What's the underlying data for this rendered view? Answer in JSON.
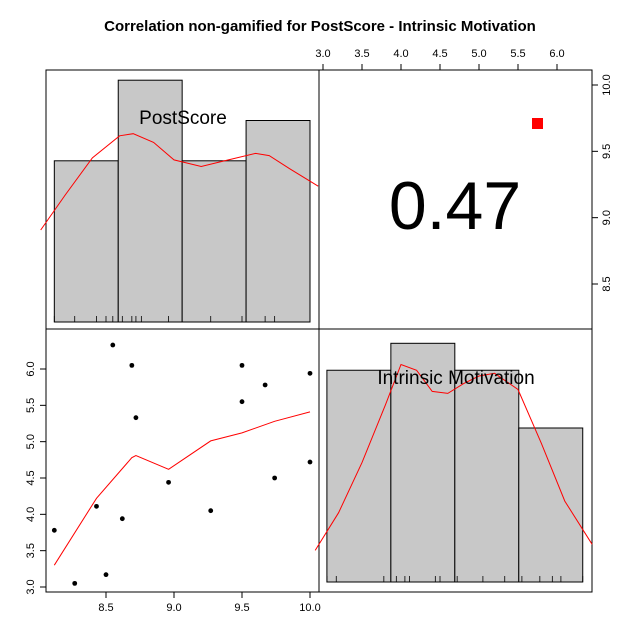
{
  "title": "Correlation non-gamified for PostScore - Intrinsic Motivation",
  "colors": {
    "bar_fill": "#c8c8c8",
    "density_line": "#ff0000",
    "smooth_line": "#ff0000",
    "point": "#000000",
    "marker": "#ff0000"
  },
  "chart_data": {
    "type": "scatter",
    "variables": [
      "PostScore",
      "Intrinsic Motivation"
    ],
    "correlation": {
      "value": 0.47,
      "label": "0.47",
      "significance_marker": "red-square"
    },
    "axes": {
      "postscore": {
        "range": [
          8.1,
          10.04
        ],
        "ticks": [
          8.5,
          9.0,
          9.5,
          10.0
        ],
        "tick_labels": [
          "8.5",
          "9.0",
          "9.5",
          "10.0"
        ]
      },
      "motivation": {
        "range": [
          2.95,
          6.35
        ],
        "ticks": [
          3.0,
          3.5,
          4.0,
          4.5,
          5.0,
          5.5,
          6.0
        ],
        "tick_labels": [
          "3.0",
          "3.5",
          "4.0",
          "4.5",
          "5.0",
          "5.5",
          "6.0"
        ]
      },
      "top_ticks": {
        "ticks": [
          3.0,
          3.5,
          4.0,
          4.5,
          5.0,
          5.5,
          6.0
        ],
        "tick_labels": [
          "3.0",
          "3.5",
          "4.0",
          "4.5",
          "5.0",
          "5.5",
          "6.0"
        ]
      },
      "right_ticks": {
        "ticks": [
          8.5,
          9.0,
          9.5,
          10.0
        ],
        "tick_labels": [
          "8.5",
          "9.0",
          "9.5",
          "10.0"
        ]
      }
    },
    "scatter_points": [
      {
        "x": 8.12,
        "y": 3.78
      },
      {
        "x": 8.27,
        "y": 3.05
      },
      {
        "x": 8.43,
        "y": 4.11
      },
      {
        "x": 8.5,
        "y": 3.17
      },
      {
        "x": 8.55,
        "y": 6.33
      },
      {
        "x": 8.62,
        "y": 3.94
      },
      {
        "x": 8.69,
        "y": 6.05
      },
      {
        "x": 8.72,
        "y": 5.33
      },
      {
        "x": 8.96,
        "y": 4.44
      },
      {
        "x": 9.27,
        "y": 4.05
      },
      {
        "x": 9.5,
        "y": 6.05
      },
      {
        "x": 9.5,
        "y": 5.55
      },
      {
        "x": 9.67,
        "y": 5.78
      },
      {
        "x": 9.74,
        "y": 4.5
      },
      {
        "x": 10.0,
        "y": 5.94
      },
      {
        "x": 10.0,
        "y": 4.72
      }
    ],
    "smooth_line": [
      {
        "x": 8.12,
        "y": 3.3
      },
      {
        "x": 8.43,
        "y": 4.22
      },
      {
        "x": 8.69,
        "y": 4.78
      },
      {
        "x": 8.72,
        "y": 4.81
      },
      {
        "x": 8.96,
        "y": 4.62
      },
      {
        "x": 9.27,
        "y": 5.01
      },
      {
        "x": 9.5,
        "y": 5.12
      },
      {
        "x": 9.74,
        "y": 5.28
      },
      {
        "x": 10.0,
        "y": 5.41
      }
    ],
    "hist_postscore": {
      "bins": [
        [
          8.12,
          8.59
        ],
        [
          8.59,
          9.06
        ],
        [
          9.06,
          9.53
        ],
        [
          9.53,
          10.0
        ]
      ],
      "counts": [
        4,
        6,
        4,
        5
      ],
      "rug": [
        8.12,
        8.27,
        8.43,
        8.5,
        8.55,
        8.62,
        8.69,
        8.72,
        8.76,
        8.96,
        9.27,
        9.5,
        9.67,
        9.74,
        10.0
      ],
      "density_x": [
        8.02,
        8.2,
        8.4,
        8.6,
        8.7,
        8.85,
        9.0,
        9.2,
        9.4,
        9.6,
        9.7,
        9.85,
        10.06
      ],
      "density_y": [
        0.42,
        0.58,
        0.75,
        0.85,
        0.86,
        0.82,
        0.74,
        0.71,
        0.74,
        0.77,
        0.76,
        0.7,
        0.62
      ]
    },
    "hist_motivation": {
      "bins": [
        [
          3.05,
          3.87
        ],
        [
          3.87,
          4.69
        ],
        [
          4.69,
          5.51
        ],
        [
          5.51,
          6.33
        ]
      ],
      "counts": [
        5.5,
        6.2,
        5.5,
        4.0
      ],
      "rug": [
        3.05,
        3.17,
        3.78,
        3.94,
        4.05,
        4.11,
        4.44,
        4.5,
        4.72,
        5.05,
        5.33,
        5.55,
        5.78,
        5.94,
        6.05,
        6.33
      ],
      "density_x": [
        2.9,
        3.2,
        3.5,
        3.8,
        4.0,
        4.2,
        4.4,
        4.6,
        4.8,
        5.0,
        5.2,
        5.5,
        5.8,
        6.1,
        6.45
      ],
      "density_y": [
        0.82,
        1.8,
        3.1,
        4.6,
        5.65,
        5.5,
        4.95,
        4.9,
        5.15,
        5.35,
        5.42,
        5.0,
        3.6,
        2.1,
        0.98
      ]
    }
  }
}
